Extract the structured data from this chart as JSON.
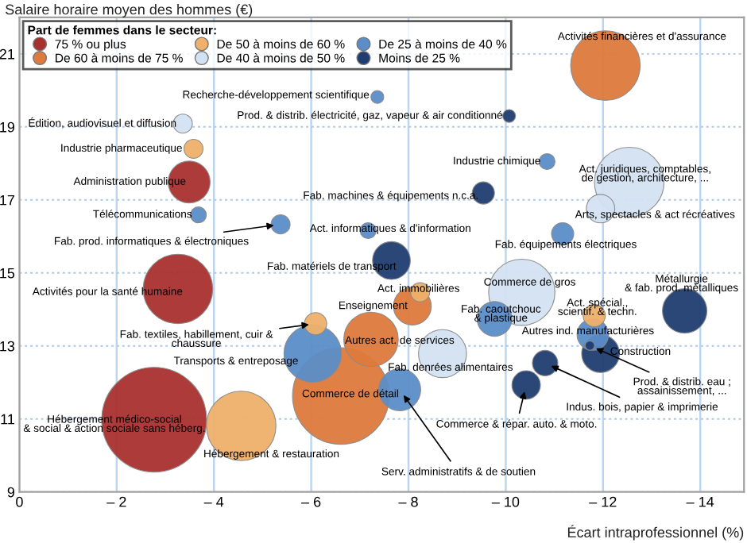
{
  "chart_data": {
    "type": "bubble",
    "ylabel": "Salaire horaire moyen des hommes (€)",
    "xlabel": "Écart intraprofessionnel (%)",
    "legend_title": "Part de femmes dans le secteur:",
    "legend": "top left",
    "grid": true,
    "relative": false,
    "xlim": [
      0,
      -14.9
    ],
    "ylim": [
      9,
      22
    ],
    "xticks": [
      0,
      {
        "value": -2,
        "label": "– 2"
      },
      {
        "value": -4,
        "label": "– 4"
      },
      {
        "value": -6,
        "label": "– 6"
      },
      {
        "value": -8,
        "label": "– 8"
      },
      {
        "value": -10,
        "label": "– 10"
      },
      {
        "value": -12,
        "label": "– 12"
      },
      {
        "value": -14,
        "label": "– 14"
      }
    ],
    "yticks": [
      9,
      11,
      13,
      15,
      17,
      19,
      21
    ],
    "series": [
      {
        "name": "75 % ou plus",
        "color": "#a8302e",
        "x": [
          -3.49,
          -3.26,
          -2.77
        ],
        "values": [
          17.49,
          14.56,
          10.98
        ],
        "sizes": [
          0.16,
          0.44,
          1.0
        ]
      },
      {
        "name": "De 60 à moins de 75 %",
        "color": "#dd7a3c",
        "x": [
          -12.05,
          -6.61,
          -7.23,
          -8.08
        ],
        "values": [
          20.68,
          11.63,
          13.18,
          14.09
        ],
        "sizes": [
          0.44,
          0.85,
          0.27,
          0.13
        ]
      },
      {
        "name": "De 50 à moins de 60 %",
        "color": "#eeb06a",
        "x": [
          -3.58,
          -4.56,
          -6.09,
          -8.24,
          -11.82
        ],
        "values": [
          18.4,
          10.81,
          13.61,
          14.47,
          13.83
        ],
        "sizes": [
          0.033,
          0.44,
          0.045,
          0.033,
          0.045
        ]
      },
      {
        "name": "De 40 à moins de 50 %",
        "color": "#d3e2f2",
        "x": [
          -3.36,
          -12.54,
          -11.95,
          -8.7,
          -10.33
        ],
        "values": [
          19.09,
          17.49,
          16.76,
          12.79,
          14.47
        ],
        "sizes": [
          0.033,
          0.44,
          0.074,
          0.21,
          0.4
        ]
      },
      {
        "name": "De 25 à moins de 40 %",
        "color": "#5b8dc8",
        "x": [
          -7.36,
          -3.68,
          -5.37,
          -7.17,
          -10.85,
          -11.17,
          -6.03,
          -7.82,
          -9.77,
          -11.79
        ],
        "values": [
          19.82,
          16.59,
          16.33,
          16.16,
          18.05,
          16.07,
          12.79,
          11.8,
          13.74,
          13.31
        ],
        "sizes": [
          0.015,
          0.023,
          0.033,
          0.023,
          0.023,
          0.045,
          0.3,
          0.16,
          0.11,
          0.09
        ]
      },
      {
        "name": "Moins de 25 %",
        "color": "#1f3d70",
        "x": [
          -10.07,
          -9.54,
          -7.65,
          -13.68,
          -11.95,
          -11.73,
          -10.81,
          -10.42
        ],
        "values": [
          19.3,
          17.19,
          15.34,
          13.96,
          12.79,
          13.01,
          12.53,
          11.93
        ],
        "sizes": [
          0.015,
          0.045,
          0.13,
          0.18,
          0.13,
          0.008,
          0.059,
          0.074
        ]
      }
    ],
    "annotations": [
      {
        "text": "Administration publique",
        "x": -3.49,
        "y": 17.49
      },
      {
        "text": "Activités pour la santé humaine",
        "x": -3.26,
        "y": 14.56
      },
      {
        "text": "Hébergement médico-social\n& social & action sociale sans héberg.",
        "x": -2.77,
        "y": 10.98
      },
      {
        "text": "Activités financières et d'assurance",
        "x": -12.05,
        "y": 20.68
      },
      {
        "text": "Commerce de détail",
        "x": -6.61,
        "y": 11.63
      },
      {
        "text": "Autres act. de services",
        "x": -7.23,
        "y": 13.18
      },
      {
        "text": "Enseignement",
        "x": -8.08,
        "y": 14.09
      },
      {
        "text": "Industrie pharmaceutique",
        "x": -3.58,
        "y": 18.4
      },
      {
        "text": "Hébergement & restauration",
        "x": -4.56,
        "y": 10.81
      },
      {
        "text": "Fab. textiles, habillement, cuir &\nchaussure",
        "x": -6.09,
        "y": 13.61
      },
      {
        "text": "Act. immobilières",
        "x": -8.24,
        "y": 14.47
      },
      {
        "text": "Act. spécial.,\nscientif. & techn.",
        "x": -11.82,
        "y": 13.83
      },
      {
        "text": "Édition, audiovisuel et diffusion",
        "x": -3.36,
        "y": 19.09
      },
      {
        "text": "Act. juridiques, comptables,\nde gestion, architecture, ...",
        "x": -12.54,
        "y": 17.49
      },
      {
        "text": "Arts, spectacles & act récréatives",
        "x": -11.95,
        "y": 16.76
      },
      {
        "text": "Fab. denrées alimentaires",
        "x": -8.7,
        "y": 12.79
      },
      {
        "text": "Commerce de gros",
        "x": -10.33,
        "y": 14.47
      },
      {
        "text": "Recherche-développement scientifique",
        "x": -7.36,
        "y": 19.82
      },
      {
        "text": "Télécommunications",
        "x": -3.68,
        "y": 16.59
      },
      {
        "text": "Fab. prod. informatiques & électroniques",
        "x": -5.37,
        "y": 16.33
      },
      {
        "text": "Act. informatiques & d'information",
        "x": -7.17,
        "y": 16.16
      },
      {
        "text": "Industrie chimique",
        "x": -10.85,
        "y": 18.05
      },
      {
        "text": "Fab. équipements électriques",
        "x": -11.17,
        "y": 16.07
      },
      {
        "text": "Transports & entreposage",
        "x": -6.03,
        "y": 12.79
      },
      {
        "text": "Serv. administratifs & de soutien",
        "x": -7.82,
        "y": 11.8
      },
      {
        "text": "Fab. caoutchouc\n& plastique",
        "x": -9.77,
        "y": 13.74
      },
      {
        "text": "Autres ind. manufacturières",
        "x": -11.79,
        "y": 13.31
      },
      {
        "text": "Prod. & distrib. électricité, gaz, vapeur & air conditionné",
        "x": -10.07,
        "y": 19.3
      },
      {
        "text": "Fab. machines & équipements n.c.a.",
        "x": -9.54,
        "y": 17.19
      },
      {
        "text": "Fab. matériels de transport",
        "x": -7.65,
        "y": 15.34
      },
      {
        "text": "Métallurgie\n& fab. prod. métalliques",
        "x": -13.68,
        "y": 13.96
      },
      {
        "text": "Construction",
        "x": -11.95,
        "y": 12.79
      },
      {
        "text": "Prod. & distrib. eau ;\nassainissement, ...",
        "x": -11.73,
        "y": 13.01
      },
      {
        "text": "Indus. bois, papier & imprimerie",
        "x": -10.81,
        "y": 12.53
      },
      {
        "text": "Commerce & répar. auto. & moto.",
        "x": -10.42,
        "y": 11.93
      }
    ]
  }
}
